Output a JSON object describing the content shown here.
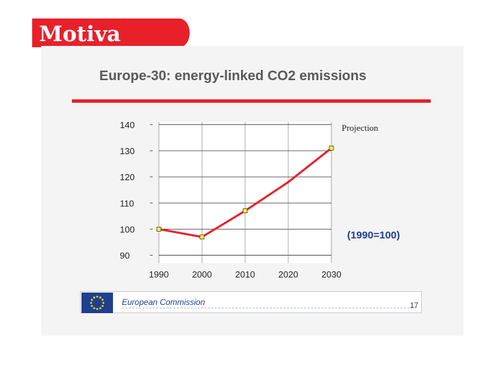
{
  "logo": {
    "text": "Motiva",
    "color": "#e8202a"
  },
  "chart_data": {
    "type": "line",
    "title": "Europe-30: energy-linked CO2 emissions",
    "categories": [
      "1990",
      "2000",
      "2010",
      "2020",
      "2030"
    ],
    "series": [
      {
        "values": [
          100,
          97,
          107,
          118,
          131
        ],
        "color": "#e8202a"
      }
    ],
    "markers": [
      "1990",
      "2000",
      "2010",
      "2030"
    ],
    "y_ticks": [
      90,
      100,
      110,
      120,
      130,
      140
    ],
    "ylim": [
      87,
      141
    ],
    "grid": true,
    "annotation": "Projection",
    "note": "(1990=100)"
  },
  "footer": {
    "label": "European Commission",
    "page_number": "17"
  }
}
